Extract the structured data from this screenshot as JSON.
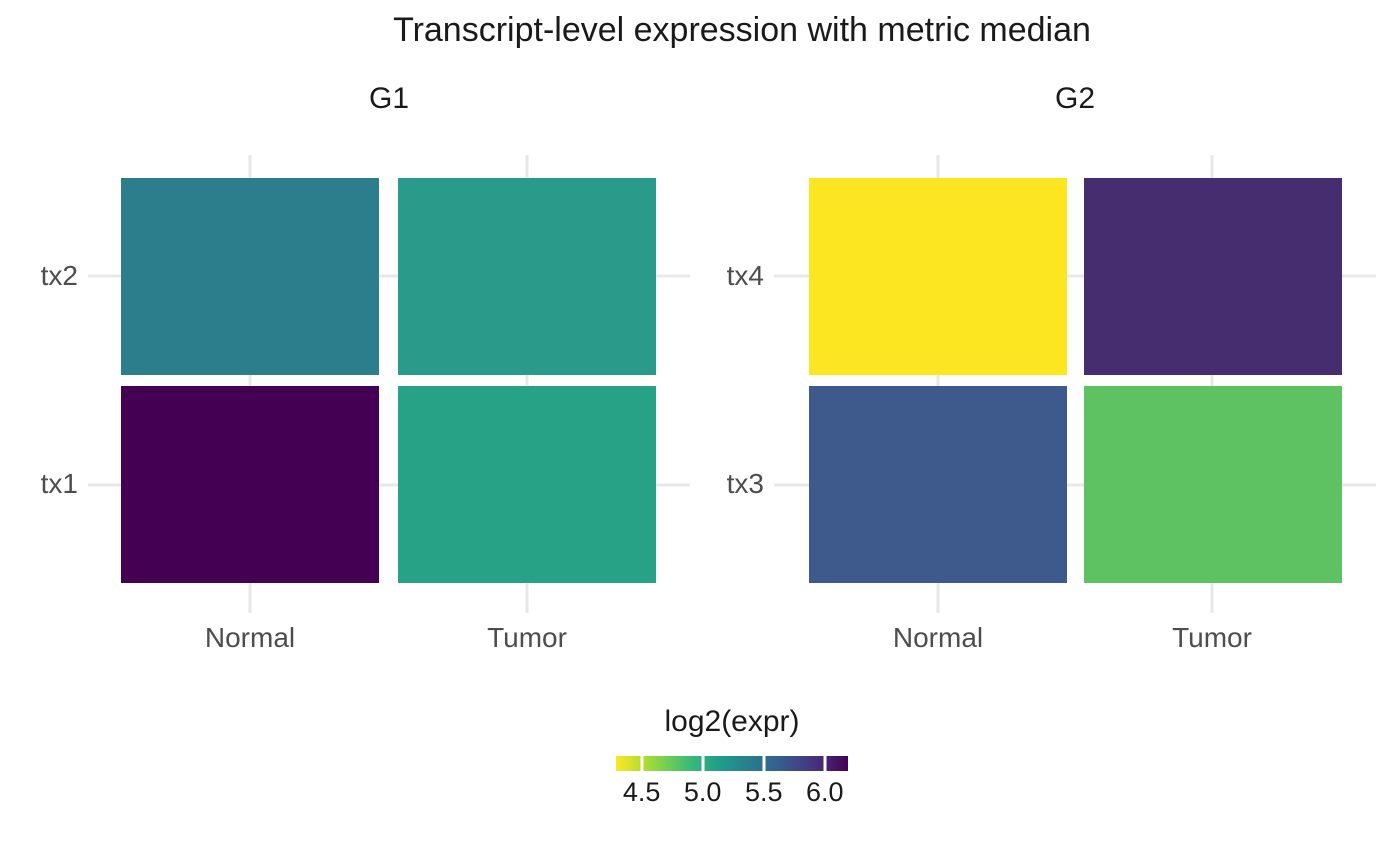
{
  "title": "Transcript-level expression with metric median",
  "chart_data": {
    "type": "heatmap",
    "title": "Transcript-level expression with metric median",
    "colormap": "viridis reversed (low = yellow, high = dark purple)",
    "x_categories": [
      "Normal",
      "Tumor"
    ],
    "facets": [
      {
        "label": "G1",
        "y_categories_top_to_bottom": [
          "tx2",
          "tx1"
        ],
        "cells": [
          {
            "transcript": "tx2",
            "condition": "Normal",
            "value": 5.4,
            "color": "#2c7e8d"
          },
          {
            "transcript": "tx2",
            "condition": "Tumor",
            "value": 5.15,
            "color": "#2a9a8b"
          },
          {
            "transcript": "tx1",
            "condition": "Normal",
            "value": 6.2,
            "color": "#440154"
          },
          {
            "transcript": "tx1",
            "condition": "Tumor",
            "value": 5.1,
            "color": "#27a286"
          }
        ]
      },
      {
        "label": "G2",
        "y_categories_top_to_bottom": [
          "tx4",
          "tx3"
        ],
        "cells": [
          {
            "transcript": "tx4",
            "condition": "Normal",
            "value": 4.3,
            "color": "#fce521"
          },
          {
            "transcript": "tx4",
            "condition": "Tumor",
            "value": 6.0,
            "color": "#462d70"
          },
          {
            "transcript": "tx3",
            "condition": "Normal",
            "value": 5.7,
            "color": "#3e5a8c"
          },
          {
            "transcript": "tx3",
            "condition": "Tumor",
            "value": 4.8,
            "color": "#5fc262"
          }
        ]
      }
    ],
    "legend": {
      "title": "log2(expr)",
      "orientation": "horizontal",
      "domain": [
        4.29,
        6.19
      ],
      "tick_values": [
        4.5,
        5.0,
        5.5,
        6.0
      ],
      "tick_labels": [
        "4.5",
        "5.0",
        "5.5",
        "6.0"
      ],
      "gradient_stops_low_to_high": [
        "#fde725",
        "#b5de2b",
        "#6ece58",
        "#35b779",
        "#1f9e89",
        "#26828e",
        "#31688e",
        "#3e4989",
        "#482878",
        "#440154"
      ]
    },
    "grid_color": "#e8e8e8",
    "axis_text_color": "#4d4d4d"
  }
}
